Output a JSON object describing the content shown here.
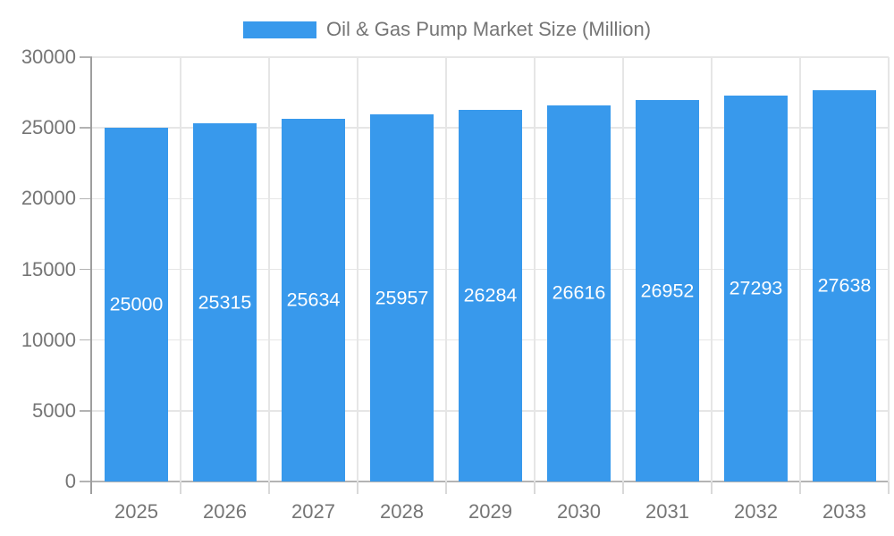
{
  "chart_data": {
    "type": "bar",
    "title": "Oil & Gas Pump Market Size (Million)",
    "legend": {
      "label": "Oil & Gas Pump Market Size (Million)",
      "position": "top"
    },
    "categories": [
      "2025",
      "2026",
      "2027",
      "2028",
      "2029",
      "2030",
      "2031",
      "2032",
      "2033"
    ],
    "values": [
      25000,
      25315,
      25634,
      25957,
      26284,
      26616,
      26952,
      27293,
      27638
    ],
    "xlabel": "",
    "ylabel": "",
    "ylim": [
      0,
      30000
    ],
    "y_ticks": [
      0,
      5000,
      10000,
      15000,
      20000,
      25000,
      30000
    ],
    "grid": true,
    "value_label_style": "inside-center-white"
  },
  "colors": {
    "bar": "#3899ec",
    "grid": "#e6e6e6",
    "axis_y": "#9e9e9e",
    "axis_x": "#b3b3b3",
    "tick_y": "#b3b3b3",
    "tick_x": "#d9d9d9",
    "text": "#757575",
    "value_label": "#ffffff",
    "background": "#ffffff"
  }
}
